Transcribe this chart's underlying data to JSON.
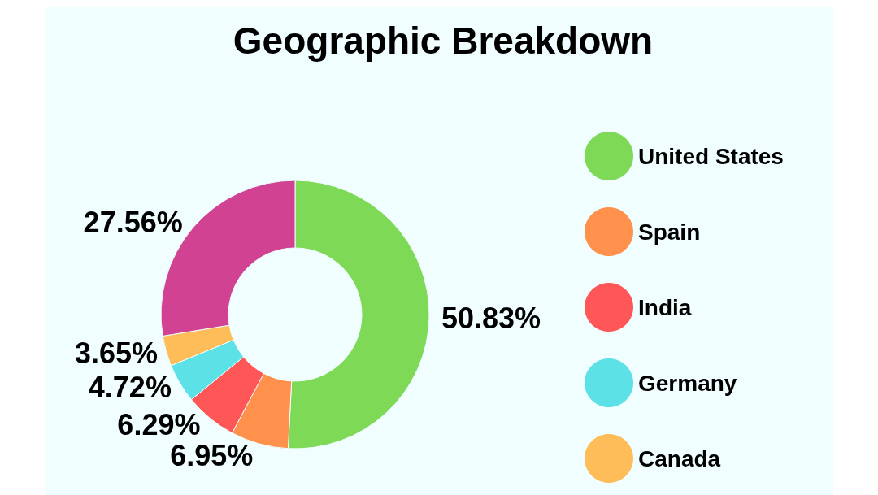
{
  "chart_data": {
    "type": "donut",
    "title": "Geographic Breakdown",
    "categories": [
      "United States",
      "Spain",
      "India",
      "Germany",
      "Canada",
      null
    ],
    "values": [
      50.83,
      6.95,
      6.29,
      4.72,
      3.65,
      27.56
    ],
    "value_labels": [
      "50.83%",
      "6.95%",
      "6.29%",
      "4.72%",
      "3.65%",
      "27.56%"
    ],
    "colors": [
      "#7ed957",
      "#ff914d",
      "#ff5757",
      "#5ce1e6",
      "#ffbd59",
      "#d14292"
    ],
    "legend": "right"
  }
}
